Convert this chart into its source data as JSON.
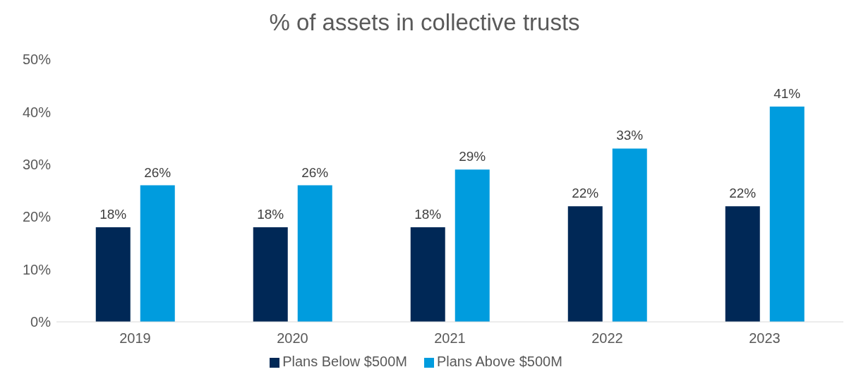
{
  "chart_data": {
    "type": "bar",
    "title": "% of assets in collective trusts",
    "categories": [
      "2019",
      "2020",
      "2021",
      "2022",
      "2023"
    ],
    "series": [
      {
        "name": "Plans Below $500M",
        "color": "#002856",
        "values": [
          18,
          18,
          18,
          22,
          22
        ],
        "value_labels": [
          "18%",
          "18%",
          "18%",
          "22%",
          "22%"
        ]
      },
      {
        "name": "Plans Above $500M",
        "color": "#009cde",
        "values": [
          26,
          26,
          29,
          33,
          41
        ],
        "value_labels": [
          "26%",
          "26%",
          "29%",
          "33%",
          "41%"
        ]
      }
    ],
    "ylim": [
      0,
      50
    ],
    "yticks": [
      {
        "value": 0,
        "label": "0%"
      },
      {
        "value": 10,
        "label": "10%"
      },
      {
        "value": 20,
        "label": "20%"
      },
      {
        "value": 30,
        "label": "30%"
      },
      {
        "value": 40,
        "label": "40%"
      },
      {
        "value": 50,
        "label": "50%"
      }
    ],
    "grid": false,
    "legend": "bottom"
  }
}
